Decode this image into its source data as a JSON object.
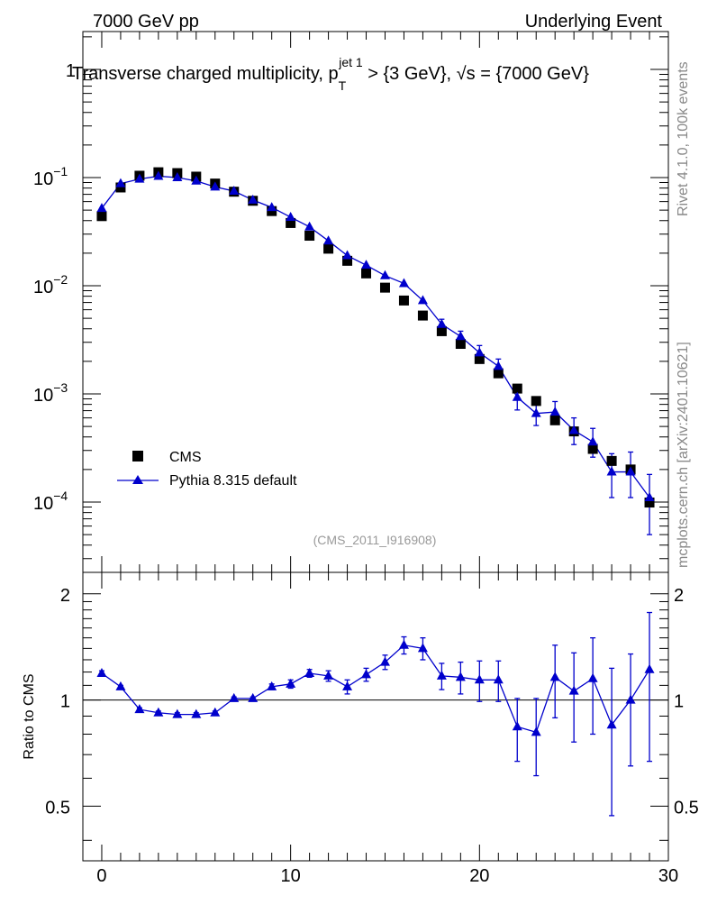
{
  "header": {
    "left": "7000 GeV pp",
    "right": "Underlying Event"
  },
  "side_labels": {
    "rivet": "Rivet 4.1.0,  100k events",
    "mcplots": "mcplots.cern.ch [arXiv:2401.10621]"
  },
  "chart_data": {
    "type": "scatter",
    "title": {
      "main": "Transverse charged multiplicity, p",
      "sub": "T",
      "sup": "jet 1",
      "cut": " > {3 GeV}, ",
      "sqrt": "√s",
      "energy": " = {7000 GeV}"
    },
    "analysis_tag": "(CMS_2011_I916908)",
    "xlim": [
      -1,
      30
    ],
    "main_ylim_log10": [
      -4.65,
      0.35
    ],
    "ratio_ylim": [
      0.35,
      2.3
    ],
    "xticks": [
      0,
      10,
      20,
      30
    ],
    "main_yticks": [
      {
        "exp": 0,
        "label": "1",
        "base": "",
        "power": ""
      },
      {
        "exp": -1,
        "label": "",
        "base": "10",
        "power": "−1"
      },
      {
        "exp": -2,
        "label": "",
        "base": "10",
        "power": "−2"
      },
      {
        "exp": -3,
        "label": "",
        "base": "10",
        "power": "−3"
      },
      {
        "exp": -4,
        "label": "",
        "base": "10",
        "power": "−4"
      }
    ],
    "ratio_yticks": [
      {
        "value": 2,
        "label": "2"
      },
      {
        "value": 1,
        "label": "1"
      },
      {
        "value": 0.5,
        "label": "0.5"
      }
    ],
    "ratio_ylabel": "Ratio to CMS",
    "legend": [
      {
        "name": "CMS",
        "marker": "square",
        "color": "#000000"
      },
      {
        "name": "Pythia 8.315 default",
        "marker": "triangle",
        "color": "#0000cc"
      }
    ],
    "x": [
      0,
      1,
      2,
      3,
      4,
      5,
      6,
      7,
      8,
      9,
      10,
      11,
      12,
      13,
      14,
      15,
      16,
      17,
      18,
      19,
      20,
      21,
      22,
      23,
      24,
      25,
      26,
      27,
      28,
      29
    ],
    "series": [
      {
        "name": "CMS",
        "values": [
          0.044,
          0.081,
          0.104,
          0.112,
          0.11,
          0.102,
          0.088,
          0.074,
          0.061,
          0.049,
          0.038,
          0.029,
          0.022,
          0.017,
          0.013,
          0.0096,
          0.0073,
          0.0053,
          0.0038,
          0.0029,
          0.0021,
          0.00155,
          0.00112,
          0.00086,
          0.00057,
          0.00045,
          0.00031,
          0.00024,
          0.0002,
          9.9e-05
        ]
      },
      {
        "name": "Pythia 8.315 default",
        "values": [
          0.052,
          0.088,
          0.097,
          0.103,
          0.1,
          0.093,
          0.082,
          0.075,
          0.062,
          0.053,
          0.043,
          0.035,
          0.026,
          0.019,
          0.0155,
          0.0124,
          0.0105,
          0.0073,
          0.0044,
          0.0034,
          0.0024,
          0.0018,
          0.00093,
          0.00066,
          0.00068,
          0.00046,
          0.00036,
          0.00019,
          0.00019,
          0.00011
        ],
        "err_up": [
          0,
          0,
          0,
          0,
          0,
          0,
          0,
          0,
          0,
          0,
          0,
          0,
          0,
          0,
          0,
          0,
          0,
          0,
          0.0005,
          0.0004,
          0.0004,
          0.0003,
          0.00025,
          0.00017,
          0.00017,
          0.00014,
          0.00012,
          9e-05,
          0.0001,
          7e-05
        ],
        "err_down": [
          0,
          0,
          0,
          0,
          0,
          0,
          0,
          0,
          0,
          0,
          0,
          0,
          0,
          0,
          0,
          0,
          0,
          0,
          0.0005,
          0.0004,
          0.0004,
          0.0003,
          0.00022,
          0.00015,
          0.00015,
          0.00012,
          0.0001,
          8e-05,
          8e-05,
          6e-05
        ]
      }
    ],
    "ratio": {
      "name": "Pythia 8.315 default / CMS",
      "values": [
        1.19,
        1.09,
        0.94,
        0.92,
        0.91,
        0.91,
        0.92,
        1.01,
        1.01,
        1.09,
        1.11,
        1.19,
        1.17,
        1.09,
        1.18,
        1.28,
        1.43,
        1.4,
        1.17,
        1.16,
        1.14,
        1.14,
        0.84,
        0.81,
        1.16,
        1.06,
        1.15,
        0.85,
        1.0,
        1.22
      ],
      "err_up": [
        0.02,
        0.01,
        0.01,
        0.01,
        0.01,
        0.01,
        0.01,
        0.01,
        0.01,
        0.02,
        0.03,
        0.03,
        0.04,
        0.05,
        0.05,
        0.06,
        0.08,
        0.1,
        0.1,
        0.12,
        0.15,
        0.15,
        0.17,
        0.2,
        0.27,
        0.3,
        0.35,
        0.38,
        0.35,
        0.55
      ],
      "err_down": [
        0.02,
        0.01,
        0.01,
        0.01,
        0.01,
        0.01,
        0.01,
        0.01,
        0.01,
        0.02,
        0.03,
        0.03,
        0.04,
        0.05,
        0.05,
        0.06,
        0.08,
        0.1,
        0.1,
        0.12,
        0.15,
        0.15,
        0.17,
        0.2,
        0.27,
        0.3,
        0.35,
        0.38,
        0.35,
        0.55
      ]
    },
    "reference_line": 1
  }
}
